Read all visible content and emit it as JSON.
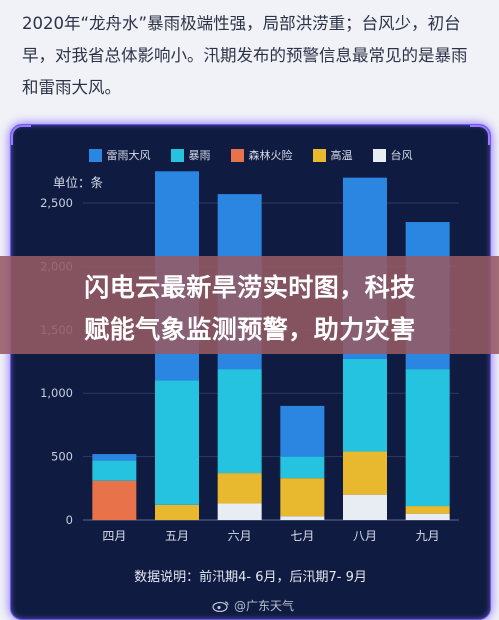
{
  "intro_text": "2020年“龙舟水”暴雨极端性强，局部洪涝重；台风少，初台早，对我省总体影响小。汛期发布的预警信息最常见的是暴雨和雷雨大风。",
  "banner": {
    "line1": "闪电云最新旱涝实时图，科技",
    "line2": "赋能气象监测预警，助力灾害"
  },
  "watermark": "@广东天气",
  "colors": {
    "雷雨大风": "#2a86e0",
    "暴雨": "#25c3e0",
    "森林火险": "#e8734a",
    "高温": "#e8b92e",
    "台风": "#e8edf4"
  },
  "chart_data": {
    "type": "bar",
    "stacked": true,
    "unit_label": "单位：条",
    "footnote": "数据说明：前汛期4- 6月，后汛期7- 9月",
    "categories": [
      "四月",
      "五月",
      "六月",
      "七月",
      "八月",
      "九月"
    ],
    "ylim": [
      0,
      2500
    ],
    "yticks": [
      "0",
      "500",
      "1,000",
      "1,500",
      "2,000",
      "2,500"
    ],
    "yticks_values": [
      0,
      500,
      1000,
      1500,
      2000,
      2500
    ],
    "grid": true,
    "legend_position": "top-center",
    "series": [
      {
        "name": "台风",
        "values": [
          0,
          0,
          130,
          30,
          200,
          50
        ]
      },
      {
        "name": "森林火险",
        "values": [
          310,
          0,
          0,
          0,
          0,
          0
        ]
      },
      {
        "name": "高温",
        "values": [
          0,
          120,
          240,
          300,
          340,
          60
        ]
      },
      {
        "name": "暴雨",
        "values": [
          160,
          980,
          820,
          170,
          730,
          1080
        ]
      },
      {
        "name": "雷雨大风",
        "values": [
          50,
          1650,
          1380,
          400,
          1430,
          1160
        ]
      }
    ],
    "legend_order": [
      "雷雨大风",
      "暴雨",
      "森林火险",
      "高温",
      "台风"
    ]
  }
}
